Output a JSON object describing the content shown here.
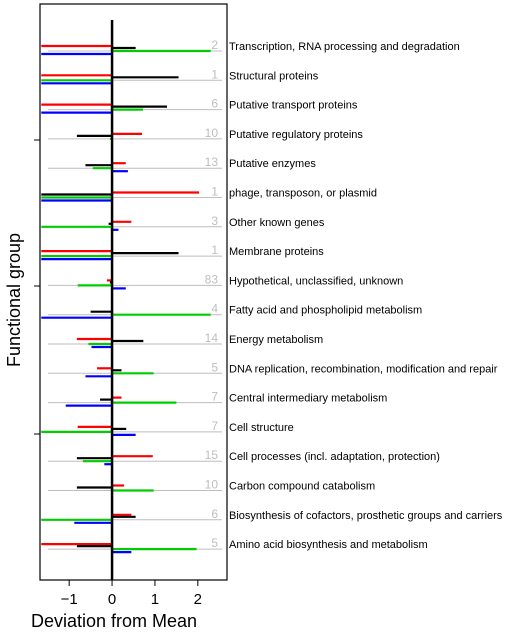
{
  "chart_data": {
    "type": "bar",
    "orientation": "horizontal",
    "xlabel": "Deviation from Mean",
    "ylabel": "Functional group",
    "xlim": [
      -1.68,
      2.68
    ],
    "xticks": [
      -1,
      0,
      1,
      2
    ],
    "xtick_labels": [
      "−1",
      "0",
      "1",
      "2"
    ],
    "grid": false,
    "legend": "none",
    "colors": {
      "red": "#ff0000",
      "black": "#000000",
      "green": "#00cc00",
      "blue": "#0000ff",
      "reference_line": "#bebebe",
      "count_label": "#bebebe"
    },
    "series_order": [
      "red",
      "black",
      "green",
      "blue"
    ],
    "categories": [
      {
        "label": "Transcription, RNA processing and degradation",
        "count": "2",
        "values": {
          "red": -1.65,
          "black": 0.55,
          "green": 2.3,
          "blue": -1.65
        }
      },
      {
        "label": "Structural proteins",
        "count": "1",
        "values": {
          "red": -1.65,
          "black": 1.55,
          "green": -1.65,
          "blue": -1.65
        }
      },
      {
        "label": "Putative transport proteins",
        "count": "6",
        "values": {
          "red": -1.65,
          "black": 1.28,
          "green": 0.72,
          "blue": -1.65
        }
      },
      {
        "label": "Putative regulatory proteins",
        "count": "10",
        "values": {
          "red": 0.7,
          "black": -0.82,
          "green": -0.05,
          "blue": 0.0
        }
      },
      {
        "label": "Putative enzymes",
        "count": "13",
        "values": {
          "red": 0.32,
          "black": -0.62,
          "green": -0.45,
          "blue": 0.37
        }
      },
      {
        "label": "phage, transposon, or plasmid",
        "count": "1",
        "values": {
          "red": 2.03,
          "black": -1.65,
          "green": -1.65,
          "blue": -1.65
        }
      },
      {
        "label": "Other known genes",
        "count": "3",
        "values": {
          "red": 0.45,
          "black": -0.08,
          "green": -1.65,
          "blue": 0.15
        }
      },
      {
        "label": "Membrane proteins",
        "count": "1",
        "values": {
          "red": -1.65,
          "black": 1.55,
          "green": -1.65,
          "blue": -1.65
        }
      },
      {
        "label": "Hypothetical, unclassified, unknown",
        "count": "83",
        "values": {
          "red": -0.12,
          "black": -0.05,
          "green": -0.8,
          "blue": 0.32
        }
      },
      {
        "label": "Fatty acid and phospholipid metabolism",
        "count": "4",
        "values": {
          "red": 0.0,
          "black": -0.5,
          "green": 2.3,
          "blue": -1.65
        }
      },
      {
        "label": "Energy metabolism",
        "count": "14",
        "values": {
          "red": -0.82,
          "black": 0.73,
          "green": -0.55,
          "blue": -0.48
        }
      },
      {
        "label": "DNA replication, recombination, modification and repair",
        "count": "5",
        "values": {
          "red": -0.35,
          "black": 0.22,
          "green": 0.97,
          "blue": -0.62
        }
      },
      {
        "label": "Central intermediary metabolism",
        "count": "7",
        "values": {
          "red": 0.22,
          "black": -0.28,
          "green": 1.5,
          "blue": -1.08
        }
      },
      {
        "label": "Cell structure",
        "count": "7",
        "values": {
          "red": -0.8,
          "black": 0.33,
          "green": -1.65,
          "blue": 0.55
        }
      },
      {
        "label": "Cell processes (incl. adaptation, protection)",
        "count": "15",
        "values": {
          "red": 0.95,
          "black": -0.82,
          "green": -0.68,
          "blue": -0.18
        }
      },
      {
        "label": "Carbon compound catabolism",
        "count": "10",
        "values": {
          "red": 0.28,
          "black": -0.82,
          "green": 0.97,
          "blue": 0.0
        }
      },
      {
        "label": "Biosynthesis of cofactors, prosthetic groups and carriers",
        "count": "6",
        "values": {
          "red": 0.45,
          "black": 0.55,
          "green": -1.65,
          "blue": -0.88
        }
      },
      {
        "label": "Amino acid biosynthesis and metabolism",
        "count": "5",
        "values": {
          "red": -1.65,
          "black": -0.82,
          "green": 1.97,
          "blue": 0.45
        }
      }
    ]
  }
}
